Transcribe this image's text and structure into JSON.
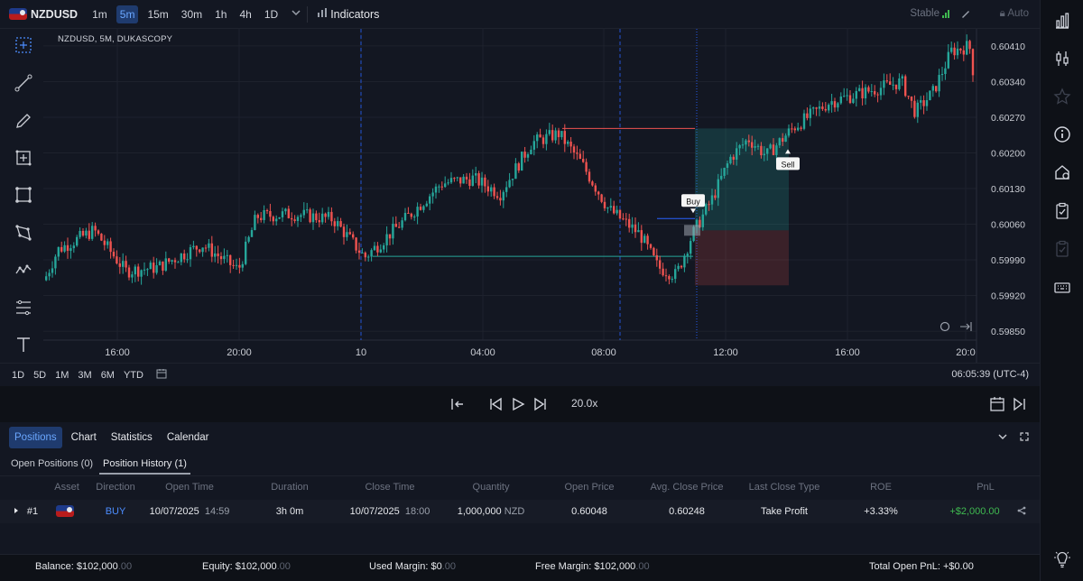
{
  "toolbar": {
    "symbol": "NZDUSD",
    "timeframes": [
      "1m",
      "5m",
      "15m",
      "30m",
      "1h",
      "4h",
      "1D"
    ],
    "active_timeframe": "5m",
    "indicators_label": "Indicators",
    "status": "Stable",
    "auto_label": "Auto"
  },
  "chart": {
    "label": "NZDUSD, 5M, DUKASCOPY",
    "price_ticks": [
      "0.60410",
      "0.60340",
      "0.60270",
      "0.60200",
      "0.60130",
      "0.60060",
      "0.59990",
      "0.59920",
      "0.59850"
    ],
    "time_ticks": [
      "16:00",
      "20:00",
      "10",
      "04:00",
      "08:00",
      "12:00",
      "16:00",
      "20:0"
    ],
    "buy_label": "Buy",
    "sell_label": "Sell",
    "colors": {
      "up": "#26a69a",
      "down": "#ef5350",
      "bg": "#131722",
      "grid": "#1e222d"
    }
  },
  "chart_data": {
    "type": "candlestick",
    "title": "NZDUSD, 5M, DUKASCOPY",
    "ylim": [
      0.5982,
      0.6044
    ],
    "x_ticks": [
      "16:00",
      "20:00",
      "10",
      "04:00",
      "08:00",
      "12:00",
      "16:00",
      "20:0"
    ],
    "trade": {
      "side": "BUY",
      "entry": 0.60048,
      "take_profit": 0.60248,
      "stop_loss": 0.5994
    }
  },
  "rangebar": {
    "ranges": [
      "1D",
      "5D",
      "1M",
      "3M",
      "6M",
      "YTD"
    ],
    "clock": "06:05:39 (UTC-4)"
  },
  "playback": {
    "speed": "20.0x"
  },
  "panel": {
    "tabs": [
      "Positions",
      "Chart",
      "Statistics",
      "Calendar"
    ],
    "subtabs": [
      "Open Positions (0)",
      "Position History (1)"
    ],
    "columns": [
      "Asset",
      "Direction",
      "Open Time",
      "Duration",
      "Close Time",
      "Quantity",
      "Open Price",
      "Avg. Close Price",
      "Last Close Type",
      "ROE",
      "PnL"
    ],
    "row": {
      "id": "#1",
      "direction": "BUY",
      "open_date": "10/07/2025",
      "open_time": "14:59",
      "duration": "3h 0m",
      "close_date": "10/07/2025",
      "close_time": "18:00",
      "quantity": "1,000,000",
      "quantity_unit": "NZD",
      "open_price": "0.60048",
      "avg_close_price": "0.60248",
      "last_close_type": "Take Profit",
      "roe": "+3.33%",
      "pnl": "+$2,000.00"
    }
  },
  "footer": {
    "balance_label": "Balance:",
    "balance": "$102,000",
    "balance_dec": ".00",
    "equity_label": "Equity:",
    "equity": "$102,000",
    "equity_dec": ".00",
    "used_margin_label": "Used Margin:",
    "used_margin": "$0",
    "used_margin_dec": ".00",
    "free_margin_label": "Free Margin:",
    "free_margin": "$102,000",
    "free_margin_dec": ".00",
    "total_pnl_label": "Total Open PnL:",
    "total_pnl": "+$0.00"
  }
}
